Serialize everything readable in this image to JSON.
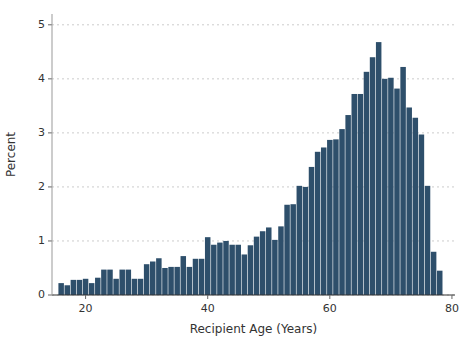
{
  "chart_data": {
    "type": "bar",
    "xlabel": "Recipient Age (Years)",
    "ylabel": "Percent",
    "x": [
      16,
      17,
      18,
      19,
      20,
      21,
      22,
      23,
      24,
      25,
      26,
      27,
      28,
      29,
      30,
      31,
      32,
      33,
      34,
      35,
      36,
      37,
      38,
      39,
      40,
      41,
      42,
      43,
      44,
      45,
      46,
      47,
      48,
      49,
      50,
      51,
      52,
      53,
      54,
      55,
      56,
      57,
      58,
      59,
      60,
      61,
      62,
      63,
      64,
      65,
      66,
      67,
      68,
      69,
      70,
      71,
      72,
      73,
      74,
      75,
      76,
      77,
      78
    ],
    "values": [
      0.22,
      0.18,
      0.28,
      0.28,
      0.3,
      0.22,
      0.32,
      0.47,
      0.47,
      0.3,
      0.47,
      0.47,
      0.3,
      0.3,
      0.57,
      0.62,
      0.68,
      0.5,
      0.52,
      0.52,
      0.72,
      0.52,
      0.67,
      0.67,
      1.07,
      0.93,
      0.97,
      1.0,
      0.93,
      0.93,
      0.75,
      0.92,
      1.08,
      1.18,
      1.25,
      1.02,
      1.27,
      1.67,
      1.68,
      2.02,
      2.0,
      2.37,
      2.65,
      2.73,
      2.87,
      2.88,
      3.07,
      3.33,
      3.72,
      3.72,
      4.13,
      4.4,
      4.68,
      4.0,
      4.02,
      3.82,
      4.22,
      3.47,
      3.28,
      2.97,
      2.02,
      0.8,
      0.45
    ],
    "color": "#2e4f6b",
    "xlim": [
      14.5,
      80.5
    ],
    "ylim": [
      0,
      5.2
    ],
    "xticks": [
      20,
      40,
      60,
      80
    ],
    "yticks": [
      0,
      1,
      2,
      3,
      4,
      5
    ],
    "grid": true
  }
}
